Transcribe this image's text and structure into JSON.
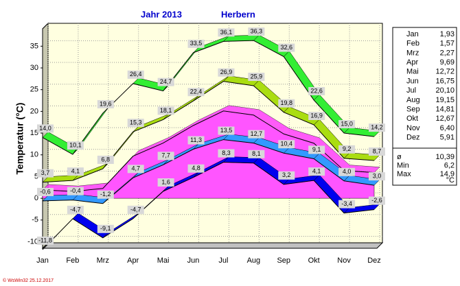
{
  "chart_data": {
    "type": "line",
    "title": "Jahr 2013",
    "subtitle": "Herbern",
    "y_label": "Temperatur  (°C)",
    "categories": [
      "Jan",
      "Feb",
      "Mrz",
      "Apr",
      "Mai",
      "Jun",
      "Jul",
      "Aug",
      "Sep",
      "Okt",
      "Nov",
      "Dez"
    ],
    "ylim": [
      -11.5,
      39
    ],
    "yticks": [
      -10,
      -5,
      0,
      5,
      10,
      15,
      20,
      25,
      30,
      35
    ],
    "grid": true,
    "series": [
      {
        "style": "ribbon",
        "color": "#33ee33",
        "values": [
          14.0,
          10.1,
          19.6,
          26.4,
          24.7,
          33.5,
          36.1,
          36.3,
          32.6,
          22.6,
          15.0,
          14.2
        ],
        "value_labels": [
          "14,0",
          "10,1",
          "19,6",
          "26,4",
          "24,7",
          "33,5",
          "36,1",
          "36,3",
          "32,6",
          "22,6",
          "15,0",
          "14,2"
        ]
      },
      {
        "style": "ribbon",
        "color": "#aadd11",
        "values": [
          3.7,
          4.1,
          6.8,
          15.3,
          18.1,
          22.4,
          26.9,
          25.9,
          19.8,
          16.9,
          9.2,
          8.7
        ],
        "value_labels": [
          "3,7",
          "4,1",
          "6,8",
          "15,3",
          "18,1",
          "22,4",
          "26,9",
          "25,9",
          "19,8",
          "16,9",
          "9,2",
          "8,7"
        ]
      },
      {
        "style": "area",
        "color": "#ff55ff",
        "values": [
          1.93,
          1.57,
          2.27,
          9.69,
          12.72,
          16.75,
          20.1,
          19.15,
          14.81,
          12.67,
          6.4,
          5.91
        ],
        "value_labels": [
          "1,93",
          "1,57",
          "2,27",
          "9,69",
          "12,72",
          "16,75",
          "20,10",
          "19,15",
          "14,81",
          "12,67",
          "6,40",
          "5,91"
        ]
      },
      {
        "style": "ribbon",
        "color": "#3399ff",
        "values": [
          -0.6,
          -0.4,
          -1.2,
          4.7,
          7.7,
          11.3,
          13.5,
          12.7,
          10.4,
          9.1,
          4.0,
          3.0
        ],
        "value_labels": [
          "-0,6",
          "-0,4",
          "-1,2",
          "4,7",
          "7,7",
          "11,3",
          "13,5",
          "12,7",
          "10,4",
          "9,1",
          "4,0",
          "3,0"
        ]
      },
      {
        "style": "ribbon",
        "color": "#0000ee",
        "values": [
          -11.8,
          -4.7,
          -9.1,
          -4.7,
          1.6,
          4.8,
          8.3,
          8.1,
          3.2,
          4.1,
          -3.4,
          -2.6
        ],
        "value_labels": [
          "-11,8",
          "-4,7",
          "-9,1",
          "-4,7",
          "1,6",
          "4,8",
          "8,3",
          "8,1",
          "3,2",
          "4,1",
          "-3,4",
          "-2,6"
        ]
      }
    ],
    "summary": [
      {
        "label": "ø",
        "value": "10,39"
      },
      {
        "label": "Min",
        "value": "6,2"
      },
      {
        "label": "Max",
        "value": "14,9"
      }
    ],
    "unit": "°C",
    "footer": "© WsWin32  25.12.2017"
  }
}
